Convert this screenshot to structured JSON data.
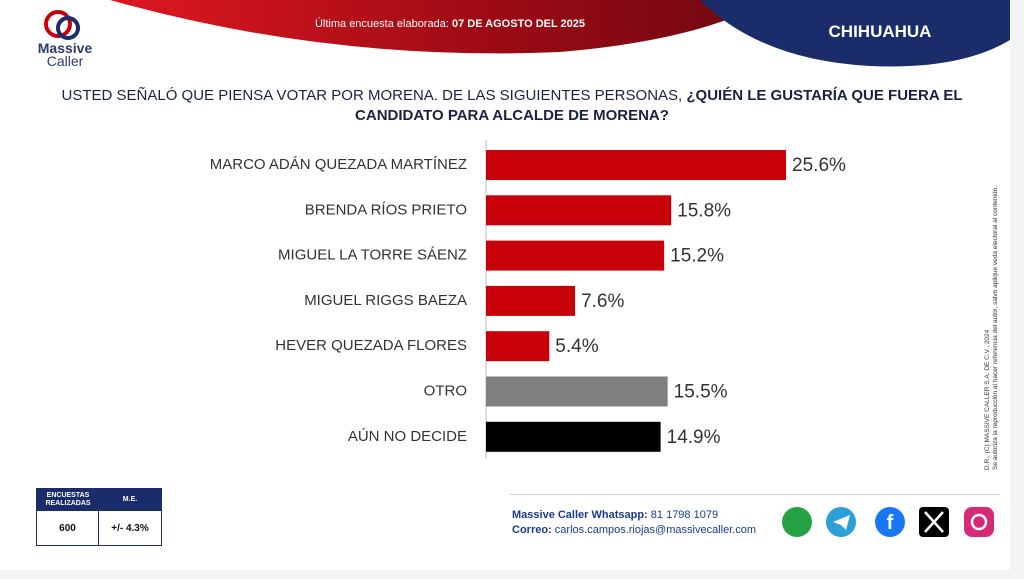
{
  "header": {
    "brand_line1": "Massive",
    "brand_line2": "Caller",
    "survey_label": "Última encuesta elaborada:",
    "survey_date": "07 DE AGOSTO DEL 2025",
    "region": "CHIHUAHUA"
  },
  "chart_data": {
    "type": "bar",
    "orientation": "horizontal",
    "title": "USTED SEÑALÓ QUE PIENSA VOTAR POR MORENA. DE LAS SIGUIENTES PERSONAS,",
    "title_emphasis": "¿QUIÉN LE GUSTARÍA QUE FUERA EL CANDIDATO PARA ALCALDE DE MORENA?",
    "categories": [
      "MARCO ADÁN QUEZADA MARTÍNEZ",
      "BRENDA RÍOS PRIETO",
      "MIGUEL LA TORRE SÁENZ",
      "MIGUEL RIGGS BAEZA",
      "HEVER QUEZADA FLORES",
      "OTRO",
      "AÚN NO DECIDE"
    ],
    "values": [
      25.6,
      15.8,
      15.2,
      7.6,
      5.4,
      15.5,
      14.9
    ],
    "value_labels": [
      "25.6%",
      "15.8%",
      "15.2%",
      "7.6%",
      "5.4%",
      "15.5%",
      "14.9%"
    ],
    "colors": [
      "#c8000a",
      "#c8000a",
      "#c8000a",
      "#c8000a",
      "#c8000a",
      "#808080",
      "#000000"
    ]
  },
  "side_note": {
    "copyright": "D.R., (C) MASSIVE CALLER S.A. DE C.V., 2024",
    "permission": "Se autoriza la reproducción al hacer referencia del autor, salvo aplique veda electoral al contenido."
  },
  "table": {
    "headers": [
      "ENCUESTAS REALIZADAS",
      "M.E."
    ],
    "rows": [
      [
        "600",
        "+/- 4.3%"
      ]
    ]
  },
  "footer": {
    "whatsapp_label": "Massive Caller Whatsapp:",
    "whatsapp": "81 1798 1079",
    "email_label": "Correo:",
    "email": "carlos.campos.riojas@massivecaller.com"
  }
}
